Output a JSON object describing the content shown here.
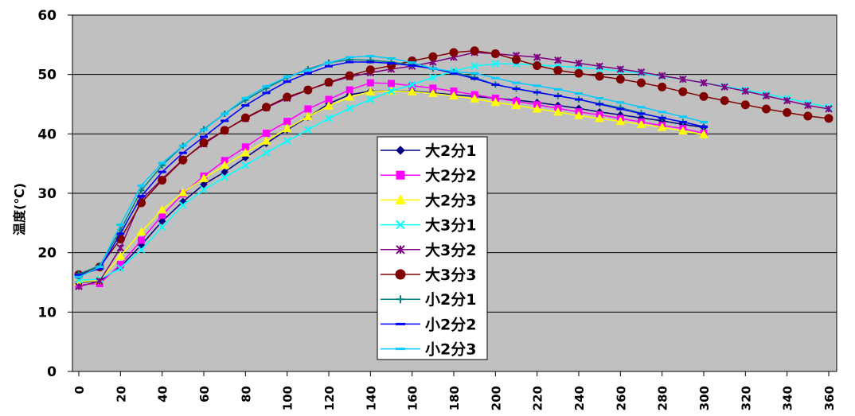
{
  "chart_data": {
    "type": "line",
    "title": "",
    "xlabel": "",
    "ylabel": "温度(℃)",
    "xlim": [
      0,
      360
    ],
    "ylim": [
      0,
      60
    ],
    "x_ticks": [
      0,
      20,
      40,
      60,
      80,
      100,
      120,
      140,
      160,
      180,
      200,
      220,
      240,
      260,
      280,
      300,
      320,
      340,
      360
    ],
    "y_ticks": [
      0,
      10,
      20,
      30,
      40,
      50,
      60
    ],
    "grid": "horizontal",
    "legend_position": "center",
    "x": [
      0,
      10,
      20,
      30,
      40,
      50,
      60,
      70,
      80,
      90,
      100,
      110,
      120,
      130,
      140,
      150,
      160,
      170,
      180,
      190,
      200,
      210,
      220,
      230,
      240,
      250,
      260,
      270,
      280,
      290,
      300,
      310,
      320,
      330,
      340,
      350,
      360
    ],
    "series": [
      {
        "name": "大2分1",
        "color": "#000080",
        "marker": "diamond",
        "values": [
          15.0,
          15.2,
          17.6,
          21.3,
          25.3,
          28.6,
          31.5,
          33.6,
          36.0,
          38.4,
          40.7,
          42.8,
          45.1,
          46.6,
          47.2,
          47.2,
          47.2,
          46.9,
          46.6,
          46.3,
          46.0,
          45.7,
          45.3,
          44.8,
          44.3,
          43.7,
          43.2,
          42.7,
          42.2,
          41.6,
          41.1,
          null,
          null,
          null,
          null,
          null,
          null
        ]
      },
      {
        "name": "大2分2",
        "color": "#ff00ff",
        "marker": "square",
        "values": [
          14.6,
          14.8,
          18.0,
          22.1,
          26.3,
          29.9,
          32.9,
          35.5,
          37.8,
          40.1,
          42.1,
          44.2,
          45.8,
          47.4,
          48.6,
          48.5,
          48.1,
          47.7,
          47.2,
          46.6,
          46.0,
          45.5,
          44.9,
          44.3,
          43.7,
          43.2,
          42.6,
          42.0,
          41.4,
          40.9,
          40.1,
          null,
          null,
          null,
          null,
          null,
          null
        ]
      },
      {
        "name": "大2分3",
        "color": "#ffff00",
        "marker": "triangle",
        "values": [
          15.1,
          15.3,
          19.4,
          23.5,
          27.2,
          30.1,
          32.5,
          34.7,
          36.8,
          38.8,
          40.9,
          42.9,
          44.7,
          46.2,
          47.1,
          47.2,
          47.1,
          46.8,
          46.4,
          45.9,
          45.3,
          44.8,
          44.2,
          43.7,
          43.1,
          42.6,
          42.1,
          41.6,
          41.1,
          40.5,
          39.9,
          null,
          null,
          null,
          null,
          null,
          null
        ]
      },
      {
        "name": "大3分1",
        "color": "#00ffff",
        "marker": "x",
        "values": [
          15.4,
          15.5,
          17.4,
          20.5,
          24.3,
          28.0,
          30.6,
          32.7,
          34.7,
          36.8,
          38.8,
          40.7,
          42.6,
          44.3,
          45.8,
          47.2,
          48.3,
          49.5,
          50.6,
          51.4,
          51.8,
          51.8,
          51.6,
          51.4,
          51.2,
          50.9,
          50.6,
          50.2,
          49.7,
          49.2,
          48.6,
          48.0,
          47.4,
          46.7,
          46.0,
          45.2,
          44.5
        ]
      },
      {
        "name": "大3分2",
        "color": "#800080",
        "marker": "star",
        "values": [
          14.3,
          15.2,
          20.8,
          28.9,
          32.4,
          35.7,
          38.3,
          40.6,
          42.6,
          44.4,
          46.0,
          47.4,
          48.6,
          49.6,
          50.3,
          50.9,
          51.4,
          52.1,
          52.9,
          53.7,
          53.5,
          53.2,
          52.9,
          52.4,
          51.9,
          51.4,
          50.9,
          50.4,
          49.8,
          49.2,
          48.6,
          47.9,
          47.2,
          46.4,
          45.6,
          44.8,
          44.2
        ]
      },
      {
        "name": "大3分3",
        "color": "#800000",
        "marker": "circle",
        "values": [
          16.3,
          17.6,
          22.3,
          28.4,
          32.2,
          35.6,
          38.5,
          40.6,
          42.7,
          44.5,
          46.2,
          47.4,
          48.7,
          49.8,
          50.8,
          51.5,
          52.3,
          53.0,
          53.7,
          54.0,
          53.5,
          52.5,
          51.5,
          50.7,
          50.2,
          49.7,
          49.2,
          48.6,
          47.9,
          47.1,
          46.3,
          45.6,
          44.9,
          44.2,
          43.6,
          43.0,
          42.6
        ]
      },
      {
        "name": "小2分1",
        "color": "#008080",
        "marker": "plus",
        "values": [
          16.4,
          17.8,
          23.8,
          30.5,
          34.7,
          38.0,
          40.8,
          43.4,
          45.7,
          47.7,
          49.5,
          50.9,
          52.0,
          52.5,
          52.4,
          52.1,
          51.6,
          51.0,
          50.4,
          49.5,
          48.3,
          47.6,
          47.0,
          46.4,
          45.8,
          45.1,
          44.4,
          43.5,
          42.7,
          42.0,
          41.2,
          null,
          null,
          null,
          null,
          null,
          null
        ]
      },
      {
        "name": "小2分2",
        "color": "#0000ff",
        "marker": "dash",
        "values": [
          16.2,
          17.3,
          23.2,
          29.5,
          33.6,
          36.8,
          39.5,
          42.2,
          44.8,
          46.9,
          48.8,
          50.2,
          51.4,
          52.1,
          52.1,
          51.9,
          51.5,
          51.0,
          50.2,
          49.3,
          48.3,
          47.6,
          47.0,
          46.4,
          45.8,
          45.0,
          44.2,
          43.4,
          42.7,
          42.0,
          41.2,
          null,
          null,
          null,
          null,
          null,
          null
        ]
      },
      {
        "name": "小2分3",
        "color": "#00ccff",
        "marker": "dash",
        "values": [
          15.9,
          17.6,
          24.7,
          31.3,
          35.1,
          38.0,
          40.7,
          43.4,
          46.0,
          48.0,
          49.6,
          50.7,
          52.0,
          52.9,
          53.1,
          52.7,
          52.0,
          51.0,
          50.5,
          50.2,
          49.4,
          48.6,
          48.1,
          47.5,
          46.8,
          46.0,
          45.3,
          44.5,
          43.7,
          42.9,
          42.0,
          null,
          null,
          null,
          null,
          null,
          null
        ]
      }
    ]
  }
}
